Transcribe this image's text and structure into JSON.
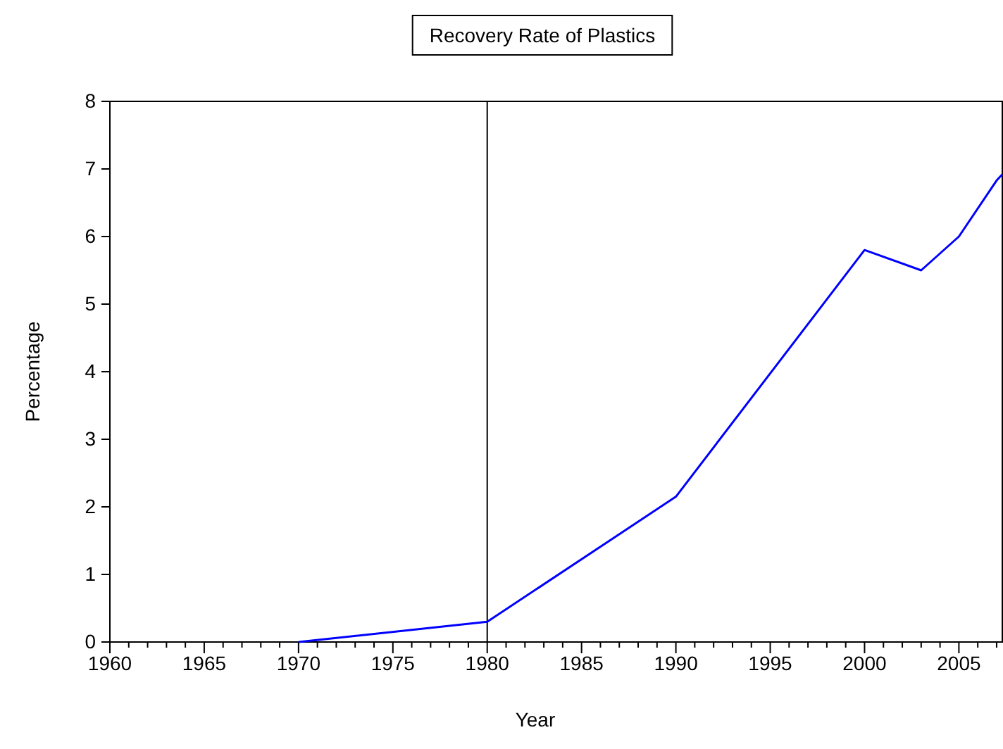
{
  "chart_data": {
    "type": "line",
    "title": "Recovery Rate of Plastics",
    "xlabel": "Year",
    "ylabel": "Percentage",
    "x": [
      1970,
      1980,
      1990,
      2000,
      2003,
      2005,
      2007,
      2007.3
    ],
    "series": [
      {
        "color": "#0000ff",
        "values": [
          0,
          0.3,
          2.15,
          5.8,
          5.5,
          6.0,
          6.83,
          6.92
        ]
      }
    ],
    "xlim": [
      1960,
      2007.3
    ],
    "ylim": [
      0,
      8
    ],
    "xticks": [
      1960,
      {
        "value": 1961,
        "label": null
      },
      {
        "value": 1962,
        "label": null
      },
      {
        "value": 1963,
        "label": null
      },
      {
        "value": 1964,
        "label": null
      },
      1965,
      {
        "value": 1966,
        "label": null
      },
      {
        "value": 1967,
        "label": null
      },
      {
        "value": 1968,
        "label": null
      },
      {
        "value": 1969,
        "label": null
      },
      1970,
      {
        "value": 1971,
        "label": null
      },
      {
        "value": 1972,
        "label": null
      },
      {
        "value": 1973,
        "label": null
      },
      {
        "value": 1974,
        "label": null
      },
      1975,
      {
        "value": 1976,
        "label": null
      },
      {
        "value": 1977,
        "label": null
      },
      {
        "value": 1978,
        "label": null
      },
      {
        "value": 1979,
        "label": null
      },
      1980,
      {
        "value": 1981,
        "label": null
      },
      {
        "value": 1982,
        "label": null
      },
      {
        "value": 1983,
        "label": null
      },
      {
        "value": 1984,
        "label": null
      },
      1985,
      {
        "value": 1986,
        "label": null
      },
      {
        "value": 1987,
        "label": null
      },
      {
        "value": 1988,
        "label": null
      },
      {
        "value": 1989,
        "label": null
      },
      1990,
      {
        "value": 1991,
        "label": null
      },
      {
        "value": 1992,
        "label": null
      },
      {
        "value": 1993,
        "label": null
      },
      {
        "value": 1994,
        "label": null
      },
      1995,
      {
        "value": 1996,
        "label": null
      },
      {
        "value": 1997,
        "label": null
      },
      {
        "value": 1998,
        "label": null
      },
      {
        "value": 1999,
        "label": null
      },
      2000,
      {
        "value": 2001,
        "label": null
      },
      {
        "value": 2002,
        "label": null
      },
      {
        "value": 2003,
        "label": null
      },
      {
        "value": 2004,
        "label": null
      },
      2005,
      {
        "value": 2006,
        "label": null
      },
      {
        "value": 2007,
        "label": null
      }
    ],
    "yticks": [
      0,
      1,
      2,
      3,
      4,
      5,
      6,
      7,
      8
    ],
    "ref_lines": [
      {
        "axis": "x",
        "value": 1980,
        "color": "#000000"
      }
    ],
    "grid": false
  }
}
